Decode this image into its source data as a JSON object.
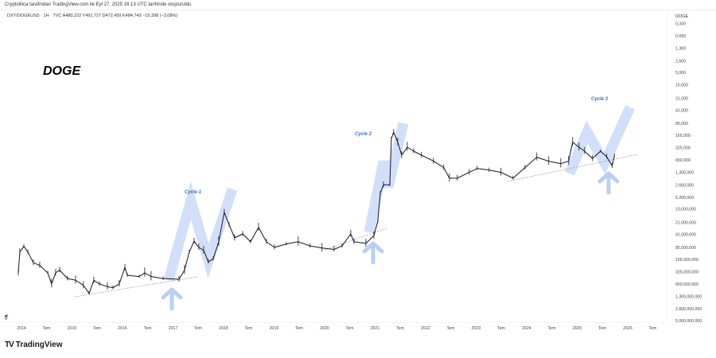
{
  "header": {
    "credit": "Cryptolilica tarafından TradingView.com ile Eyl 27, 2025 16:13 UTC tarihinde oluşturuldu",
    "symbol_legend": "DXY/DOGEUSD · 1H · TVC  A480,222  Y491,727  D472,459  K484,743  −15,398 (−3,08%)"
  },
  "branding": {
    "logo": "TV",
    "name": "TradingView"
  },
  "colors": {
    "candles": "#131722",
    "annotation_blue": "#c9dbf7",
    "cycle_text": "#3a6fc4",
    "trendline": "#9aa0a8"
  },
  "chart_data": {
    "type": "line",
    "title": "DOGE",
    "axis_label": "DOGE",
    "y_scale": "log",
    "y_inverted": false,
    "ylim": [
      0.33,
      5000000
    ],
    "y_ticks": [
      {
        "value": 0.33,
        "label": "0,330"
      },
      {
        "value": 0.65,
        "label": "0,650"
      },
      {
        "value": 1.3,
        "label": "1,300"
      },
      {
        "value": 2.6,
        "label": "2,600"
      },
      {
        "value": 5,
        "label": "5,000"
      },
      {
        "value": 10,
        "label": "10,000"
      },
      {
        "value": 21,
        "label": "21,000"
      },
      {
        "value": 41,
        "label": "41,000"
      },
      {
        "value": 85,
        "label": "85,000"
      },
      {
        "value": 165,
        "label": "165,000"
      },
      {
        "value": 325,
        "label": "325,000"
      },
      {
        "value": 650,
        "label": "650,000"
      },
      {
        "value": 1300,
        "label": "1,300,000"
      },
      {
        "value": 2600,
        "label": "2,600,000"
      },
      {
        "value": 5200,
        "label": "5,200,000"
      },
      {
        "value": 10000,
        "label": "10,000,000"
      },
      {
        "value": 21000,
        "label": "21,000,000"
      },
      {
        "value": 41000,
        "label": "41,000,000"
      },
      {
        "value": 85000,
        "label": "85,000,000"
      },
      {
        "value": 165000,
        "label": "165,000,000"
      },
      {
        "value": 325000,
        "label": "325,000,000"
      },
      {
        "value": 650000,
        "label": "650,000,000"
      },
      {
        "value": 1300000,
        "label": "1,300,000,000"
      },
      {
        "value": 2600000,
        "label": "2,600,000,000"
      },
      {
        "value": 5000000,
        "label": "5,000,000,000"
      }
    ],
    "x_ticks": [
      {
        "date": "2014-01-01",
        "label": "2014"
      },
      {
        "date": "2014-07-01",
        "label": "Tem"
      },
      {
        "date": "2015-01-01",
        "label": "2015"
      },
      {
        "date": "2015-07-01",
        "label": "Tem"
      },
      {
        "date": "2016-01-01",
        "label": "2016"
      },
      {
        "date": "2016-07-01",
        "label": "Tem"
      },
      {
        "date": "2017-01-01",
        "label": "2017"
      },
      {
        "date": "2017-07-01",
        "label": "Tem"
      },
      {
        "date": "2018-01-01",
        "label": "2018"
      },
      {
        "date": "2018-07-01",
        "label": "Tem"
      },
      {
        "date": "2019-01-01",
        "label": "2019"
      },
      {
        "date": "2019-07-01",
        "label": "Tem"
      },
      {
        "date": "2020-01-01",
        "label": "2020"
      },
      {
        "date": "2020-07-01",
        "label": "Tem"
      },
      {
        "date": "2021-01-01",
        "label": "2021"
      },
      {
        "date": "2021-07-01",
        "label": "Tem"
      },
      {
        "date": "2022-01-01",
        "label": "2022"
      },
      {
        "date": "2022-07-01",
        "label": "Tem"
      },
      {
        "date": "2023-01-01",
        "label": "2023"
      },
      {
        "date": "2023-07-01",
        "label": "Tem"
      },
      {
        "date": "2024-01-01",
        "label": "2024"
      },
      {
        "date": "2024-07-01",
        "label": "Tem"
      },
      {
        "date": "2025-01-01",
        "label": "2025"
      },
      {
        "date": "2025-07-01",
        "label": "Tem"
      },
      {
        "date": "2026-01-01",
        "label": "2026"
      },
      {
        "date": "2026-07-01",
        "label": "Tem"
      }
    ],
    "xlim": [
      "2013-11-20",
      "2026-10-01"
    ],
    "grid": false,
    "series": [
      {
        "points": [
          [
            "2013-12-09",
            350000
          ],
          [
            "2013-12-20",
            110000
          ],
          [
            "2014-01-18",
            80000
          ],
          [
            "2014-02-16",
            110000
          ],
          [
            "2014-03-28",
            200000
          ],
          [
            "2014-05-13",
            230000
          ],
          [
            "2014-07-10",
            350000
          ],
          [
            "2014-08-07",
            650000
          ],
          [
            "2014-09-05",
            350000
          ],
          [
            "2014-10-04",
            300000
          ],
          [
            "2014-11-30",
            480000
          ],
          [
            "2015-01-27",
            530000
          ],
          [
            "2015-03-25",
            700000
          ],
          [
            "2015-05-05",
            1100000
          ],
          [
            "2015-06-08",
            530000
          ],
          [
            "2015-07-19",
            650000
          ],
          [
            "2015-09-14",
            750000
          ],
          [
            "2015-10-24",
            800000
          ],
          [
            "2015-12-09",
            650000
          ],
          [
            "2016-01-19",
            260000
          ],
          [
            "2016-02-05",
            400000
          ],
          [
            "2016-05-01",
            430000
          ],
          [
            "2016-06-10",
            350000
          ],
          [
            "2016-07-26",
            430000
          ],
          [
            "2016-10-21",
            480000
          ],
          [
            "2017-02-13",
            500000
          ],
          [
            "2017-03-25",
            300000
          ],
          [
            "2017-04-28",
            110000
          ],
          [
            "2017-06-02",
            60000
          ],
          [
            "2017-07-06",
            85000
          ],
          [
            "2017-08-10",
            100000
          ],
          [
            "2017-09-13",
            190000
          ],
          [
            "2017-10-18",
            160000
          ],
          [
            "2017-11-27",
            62000
          ],
          [
            "2018-01-06",
            12000
          ],
          [
            "2018-02-10",
            24000
          ],
          [
            "2018-03-22",
            50000
          ],
          [
            "2018-05-19",
            40000
          ],
          [
            "2018-07-15",
            62000
          ],
          [
            "2018-09-11",
            28000
          ],
          [
            "2018-11-07",
            62000
          ],
          [
            "2019-01-04",
            85000
          ],
          [
            "2019-03-31",
            70000
          ],
          [
            "2019-06-25",
            62000
          ],
          [
            "2019-09-19",
            78000
          ],
          [
            "2019-12-14",
            88000
          ],
          [
            "2020-03-10",
            95000
          ],
          [
            "2020-05-07",
            78000
          ],
          [
            "2020-07-09",
            40000
          ],
          [
            "2020-08-01",
            62000
          ],
          [
            "2020-10-26",
            68000
          ],
          [
            "2020-12-23",
            44000
          ],
          [
            "2021-01-20",
            20000
          ],
          [
            "2021-02-07",
            4200
          ],
          [
            "2021-03-02",
            2600
          ],
          [
            "2021-04-17",
            2600
          ],
          [
            "2021-04-28",
            200
          ],
          [
            "2021-05-15",
            140
          ],
          [
            "2021-06-13",
            240
          ],
          [
            "2021-07-12",
            500
          ],
          [
            "2021-08-21",
            320
          ],
          [
            "2021-10-06",
            400
          ],
          [
            "2021-12-02",
            500
          ],
          [
            "2022-02-27",
            700
          ],
          [
            "2022-05-12",
            1000
          ],
          [
            "2022-06-22",
            1800
          ],
          [
            "2022-08-18",
            1800
          ],
          [
            "2022-11-12",
            1300
          ],
          [
            "2023-01-09",
            1050
          ],
          [
            "2023-04-05",
            1150
          ],
          [
            "2023-06-30",
            1300
          ],
          [
            "2023-09-25",
            1800
          ],
          [
            "2023-12-20",
            1000
          ],
          [
            "2024-03-15",
            560
          ],
          [
            "2024-06-09",
            700
          ],
          [
            "2024-09-04",
            800
          ],
          [
            "2024-10-31",
            700
          ],
          [
            "2024-11-29",
            240
          ],
          [
            "2025-01-14",
            320
          ],
          [
            "2025-02-23",
            400
          ],
          [
            "2025-04-22",
            600
          ],
          [
            "2025-06-18",
            400
          ],
          [
            "2025-08-01",
            540
          ],
          [
            "2025-09-10",
            900
          ],
          [
            "2025-09-27",
            520
          ]
        ]
      }
    ],
    "annotations": [
      {
        "label": "Cycle 1"
      },
      {
        "label": "Cycle 2"
      },
      {
        "label": "Cycle 3"
      }
    ]
  }
}
